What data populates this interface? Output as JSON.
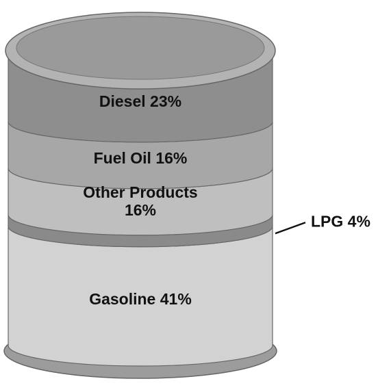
{
  "chart_data": {
    "type": "barrel",
    "categories": [
      "Diesel",
      "Fuel Oil",
      "Other Products",
      "LPG",
      "Gasoline"
    ],
    "values": [
      23,
      16,
      16,
      4,
      41
    ],
    "value_labels": [
      "23%",
      "16%",
      "16%",
      "4%",
      "41%"
    ],
    "colors": [
      "#8e8e8e",
      "#a7a7a7",
      "#bfbfbf",
      "#8a8a8a",
      "#d2d2d2"
    ]
  }
}
